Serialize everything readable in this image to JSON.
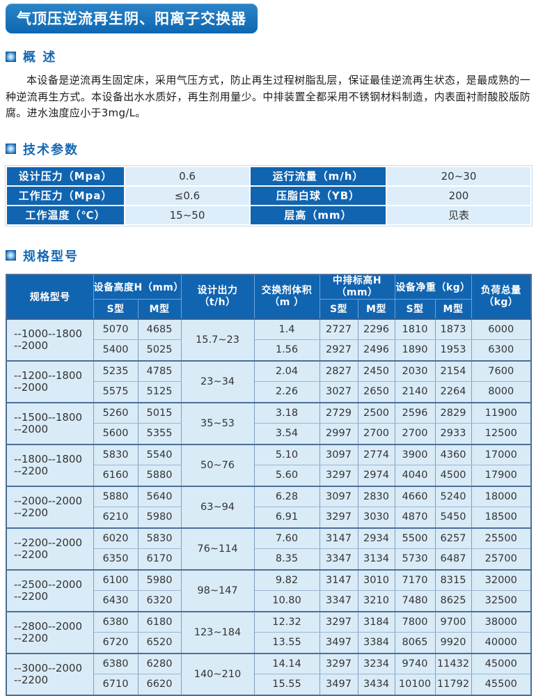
{
  "banner": {
    "title": "气顶压逆流再生阴、阳离子交换器"
  },
  "overview": {
    "title": "概 述",
    "paragraph": "本设备是逆流再生固定床，采用气压方式，防止再生过程树脂乱层，保证最佳逆流再生状态，是最成熟的一种逆流再生方式。本设备出水水质好，再生剂用量少。中排装置全都采用不锈钢材料制造，内表面衬耐酸胶版防腐。进水浊度应小于3mg/L。"
  },
  "tech_params": {
    "title": "技术参数",
    "rows": [
      {
        "l1": "设计压力（Mpa）",
        "v1": "0.6",
        "l2": "运行流量（m/h）",
        "v2": "20~30"
      },
      {
        "l1": "工作压力（Mpa）",
        "v1": "≤0.6",
        "l2": "压脂白球（YB）",
        "v2": "200"
      },
      {
        "l1": "工作温度（℃）",
        "v1": "15~50",
        "l2": "层高（mm）",
        "v2": "见表"
      }
    ]
  },
  "spec_table": {
    "title": "规格型号",
    "headers": {
      "model": "规格型号",
      "height": "设备高度H（mm）",
      "s_type": "S型",
      "m_type": "M型",
      "output_line1": "设计出力",
      "output_line2": "（t/h）",
      "volume_line1": "交换剂体积",
      "volume_line2": "（m ）",
      "mid_line1": "中排标高H",
      "mid_line2": "（mm）",
      "net_weight": "设备净重（kg）",
      "load_line1": "负荷总量",
      "load_line2": "（kg）"
    },
    "groups": [
      {
        "model_line1": "--1000--1800",
        "model_line2": "--2000",
        "output": "15.7~23",
        "rows": [
          [
            "5070",
            "4685",
            "1.4",
            "2727",
            "2296",
            "1810",
            "1873",
            "6000"
          ],
          [
            "5400",
            "5025",
            "1.56",
            "2927",
            "2496",
            "1890",
            "1953",
            "6300"
          ]
        ]
      },
      {
        "model_line1": "--1200--1800",
        "model_line2": "--2000",
        "output": "23~34",
        "rows": [
          [
            "5235",
            "4785",
            "2.04",
            "2827",
            "2450",
            "2030",
            "2154",
            "7600"
          ],
          [
            "5575",
            "5125",
            "2.26",
            "3027",
            "2650",
            "2140",
            "2264",
            "8000"
          ]
        ]
      },
      {
        "model_line1": "--1500--1800",
        "model_line2": "--2000",
        "output": "35~53",
        "rows": [
          [
            "5260",
            "5015",
            "3.18",
            "2729",
            "2500",
            "2596",
            "2829",
            "11900"
          ],
          [
            "5600",
            "5355",
            "3.54",
            "2997",
            "2700",
            "2700",
            "2933",
            "12500"
          ]
        ]
      },
      {
        "model_line1": "--1800--1800",
        "model_line2": "--2200",
        "output": "50~76",
        "rows": [
          [
            "5830",
            "5540",
            "5.10",
            "3097",
            "2774",
            "3900",
            "4360",
            "17000"
          ],
          [
            "6160",
            "5880",
            "5.60",
            "3297",
            "2974",
            "4040",
            "4500",
            "17900"
          ]
        ]
      },
      {
        "model_line1": "--2000--2000",
        "model_line2": "--2200",
        "output": "63~94",
        "rows": [
          [
            "5880",
            "5640",
            "6.28",
            "3097",
            "2830",
            "4660",
            "5240",
            "18000"
          ],
          [
            "6210",
            "5980",
            "6.91",
            "3297",
            "3030",
            "4870",
            "5450",
            "18500"
          ]
        ]
      },
      {
        "model_line1": "--2200--2000",
        "model_line2": "--2200",
        "output": "76~114",
        "rows": [
          [
            "6020",
            "5830",
            "7.60",
            "3147",
            "2934",
            "5500",
            "6257",
            "25500"
          ],
          [
            "6350",
            "6170",
            "8.35",
            "3347",
            "3134",
            "5730",
            "6487",
            "25700"
          ]
        ]
      },
      {
        "model_line1": "--2500--2000",
        "model_line2": "--2200",
        "output": "98~147",
        "rows": [
          [
            "6100",
            "5980",
            "9.82",
            "3147",
            "3010",
            "7170",
            "8315",
            "32000"
          ],
          [
            "6430",
            "6320",
            "10.80",
            "3347",
            "3210",
            "7480",
            "8625",
            "32500"
          ]
        ]
      },
      {
        "model_line1": "--2800--2000",
        "model_line2": "--2200",
        "output": "123~184",
        "rows": [
          [
            "6380",
            "6180",
            "12.32",
            "3297",
            "3184",
            "7800",
            "9700",
            "38000"
          ],
          [
            "6720",
            "6520",
            "13.55",
            "3497",
            "3384",
            "8065",
            "9920",
            "40000"
          ]
        ]
      },
      {
        "model_line1": "--3000--2000",
        "model_line2": "--2200",
        "output": "140~210",
        "rows": [
          [
            "6380",
            "6280",
            "14.14",
            "3297",
            "3234",
            "9740",
            "11432",
            "45000"
          ],
          [
            "6710",
            "6620",
            "15.55",
            "3497",
            "3434",
            "10100",
            "11792",
            "45500"
          ]
        ]
      }
    ]
  },
  "colors": {
    "header_blue": "#1164b0",
    "banner_blue": "#1173bc",
    "cell_light_blue": "#d9ebf7",
    "accent_text_blue": "#1568b3"
  }
}
